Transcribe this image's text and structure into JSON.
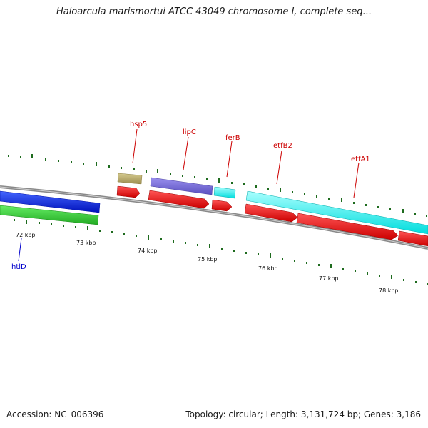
{
  "title": "Haloarcula marismortui ATCC 43049 chromosome I, complete seq...",
  "footer": {
    "accession": "Accession: NC_006396",
    "summary": "Topology: circular; Length: 3,131,724 bp; Genes: 3,186"
  },
  "colors": {
    "backbone": "#8a8a8a",
    "tick": "#1e6b1e",
    "label_red": "#cc0000",
    "label_blue": "#0000cc",
    "cds": "#ff0000",
    "gene_tan": "#b8aa6a",
    "gene_purple": "#7a70d8",
    "gene_cyan": "#00ffff",
    "gene_blue": "#0022dd",
    "gene_green": "#33cc33"
  },
  "scale": {
    "labels": [
      "72 kbp",
      "73 kbp",
      "74 kbp",
      "75 kbp",
      "76 kbp",
      "77 kbp",
      "78 kbp"
    ]
  },
  "genes": [
    {
      "name": "hsp5",
      "color": "#cc0000"
    },
    {
      "name": "lipC",
      "color": "#cc0000"
    },
    {
      "name": "ferB",
      "color": "#cc0000"
    },
    {
      "name": "etfB2",
      "color": "#cc0000"
    },
    {
      "name": "etfA1",
      "color": "#cc0000"
    },
    {
      "name": "htlD",
      "color": "#0000cc"
    }
  ]
}
